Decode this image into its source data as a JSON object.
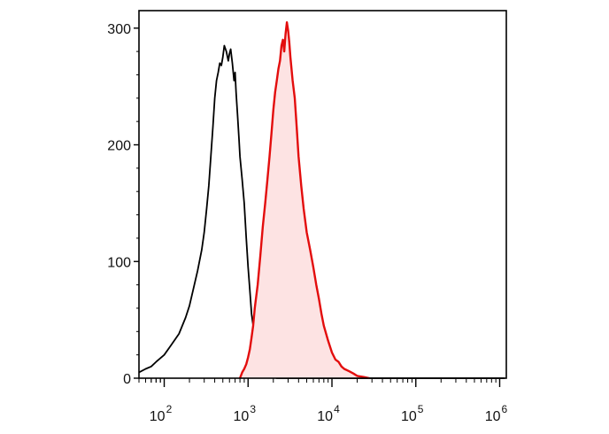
{
  "chart_data": {
    "type": "area",
    "title": "",
    "xlabel": "",
    "ylabel": "",
    "x_scale": "log",
    "xlim": [
      50,
      1200000
    ],
    "ylim": [
      0,
      315
    ],
    "grid": false,
    "legend": "none",
    "y_ticks": [
      {
        "value": 0,
        "label": "0"
      },
      {
        "value": 100,
        "label": "100"
      },
      {
        "value": 200,
        "label": "200"
      },
      {
        "value": 300,
        "label": "300"
      }
    ],
    "x_ticks": [
      {
        "value": 100,
        "base": "10",
        "exp": "2"
      },
      {
        "value": 1000,
        "base": "10",
        "exp": "3"
      },
      {
        "value": 10000,
        "base": "10",
        "exp": "4"
      },
      {
        "value": 100000,
        "base": "10",
        "exp": "5"
      },
      {
        "value": 1000000,
        "base": "10",
        "exp": "6"
      }
    ],
    "series": [
      {
        "color": "#000000",
        "fill": "none",
        "x": [
          50,
          60,
          70,
          80,
          100,
          120,
          150,
          180,
          200,
          220,
          250,
          280,
          300,
          320,
          340,
          360,
          380,
          400,
          420,
          440,
          460,
          480,
          500,
          520,
          550,
          580,
          600,
          620,
          650,
          680,
          700,
          720,
          750,
          780,
          800,
          850,
          900,
          950,
          1000,
          1050,
          1100,
          1200,
          1300,
          1400,
          1500,
          1600,
          1700,
          1800,
          2000,
          2200,
          2500,
          3000,
          4000,
          6000,
          10000,
          30000,
          100000,
          1000000,
          1150000
        ],
        "y": [
          5,
          8,
          10,
          14,
          20,
          28,
          38,
          52,
          62,
          75,
          92,
          110,
          125,
          145,
          165,
          190,
          215,
          240,
          255,
          262,
          270,
          268,
          275,
          285,
          280,
          272,
          278,
          282,
          270,
          255,
          262,
          245,
          225,
          205,
          190,
          170,
          150,
          120,
          95,
          75,
          55,
          35,
          20,
          12,
          6,
          4,
          3,
          2,
          1,
          0,
          0,
          0,
          0,
          0,
          0,
          0,
          0,
          0,
          0
        ]
      },
      {
        "color": "#e30d0d",
        "fill": "#fde3e3",
        "x": [
          800,
          850,
          900,
          950,
          1000,
          1050,
          1100,
          1150,
          1200,
          1300,
          1400,
          1500,
          1600,
          1700,
          1800,
          1900,
          2000,
          2100,
          2200,
          2300,
          2400,
          2500,
          2600,
          2700,
          2800,
          2900,
          3000,
          3100,
          3200,
          3400,
          3600,
          3800,
          4000,
          4300,
          4600,
          5000,
          5500,
          6000,
          6500,
          7000,
          7500,
          8000,
          9000,
          10000,
          11000,
          12000,
          13000,
          14000,
          16000,
          18000,
          20000,
          24000,
          28000
        ],
        "y": [
          0,
          5,
          8,
          12,
          18,
          25,
          35,
          45,
          60,
          80,
          105,
          130,
          150,
          170,
          190,
          210,
          230,
          245,
          255,
          265,
          272,
          285,
          290,
          280,
          295,
          305,
          298,
          288,
          275,
          255,
          240,
          215,
          190,
          165,
          145,
          125,
          110,
          95,
          80,
          68,
          55,
          45,
          32,
          22,
          16,
          14,
          10,
          8,
          6,
          4,
          2,
          1,
          0
        ]
      }
    ]
  }
}
